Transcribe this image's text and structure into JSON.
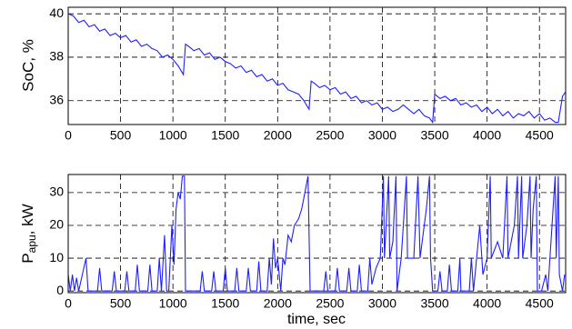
{
  "chart_data": [
    {
      "type": "line",
      "y_label": "SoC, %",
      "color": "#1f1fff",
      "grid": true,
      "xlim": [
        0,
        4750
      ],
      "xticks": [
        0,
        500,
        1000,
        1500,
        2000,
        2500,
        3000,
        3500,
        4000,
        4500
      ],
      "ylim": [
        34.9,
        40.3
      ],
      "yticks": [
        36,
        38,
        40
      ],
      "x": [
        0,
        50,
        100,
        150,
        200,
        250,
        300,
        350,
        400,
        450,
        500,
        550,
        600,
        650,
        700,
        750,
        800,
        850,
        900,
        950,
        1000,
        1050,
        1100,
        1120,
        1150,
        1200,
        1250,
        1300,
        1350,
        1400,
        1450,
        1500,
        1550,
        1600,
        1650,
        1700,
        1750,
        1800,
        1850,
        1900,
        1950,
        2000,
        2050,
        2100,
        2150,
        2200,
        2250,
        2300,
        2320,
        2350,
        2400,
        2450,
        2500,
        2550,
        2600,
        2650,
        2700,
        2750,
        2800,
        2850,
        2900,
        2950,
        3000,
        3050,
        3100,
        3150,
        3200,
        3250,
        3300,
        3350,
        3400,
        3450,
        3480,
        3500,
        3550,
        3600,
        3650,
        3700,
        3750,
        3800,
        3850,
        3900,
        3950,
        4000,
        4050,
        4100,
        4150,
        4200,
        4250,
        4300,
        4350,
        4400,
        4450,
        4500,
        4550,
        4600,
        4650,
        4680,
        4720,
        4750
      ],
      "values": [
        40,
        39.9,
        39.6,
        39.7,
        39.4,
        39.5,
        39.2,
        39.3,
        39.0,
        39.1,
        38.9,
        39.0,
        38.7,
        38.8,
        38.5,
        38.6,
        38.4,
        38.3,
        38.0,
        38.1,
        37.9,
        37.6,
        37.2,
        38.6,
        38.5,
        38.3,
        38.4,
        38.1,
        38.2,
        37.9,
        38.0,
        37.8,
        37.7,
        37.5,
        37.6,
        37.3,
        37.4,
        37.1,
        37.2,
        36.9,
        37.0,
        36.7,
        36.8,
        36.5,
        36.4,
        36.3,
        36.0,
        35.6,
        36.9,
        36.8,
        36.6,
        36.7,
        36.5,
        36.6,
        36.3,
        36.4,
        36.1,
        36.2,
        35.9,
        36.0,
        35.8,
        35.9,
        35.6,
        35.7,
        35.5,
        35.6,
        35.8,
        35.6,
        35.4,
        35.6,
        35.3,
        35.2,
        35.0,
        36.3,
        36.1,
        36.2,
        36.0,
        36.1,
        35.8,
        35.9,
        35.7,
        35.8,
        35.5,
        35.7,
        35.4,
        35.6,
        35.3,
        35.5,
        35.2,
        35.4,
        35.3,
        35.5,
        35.2,
        35.4,
        35.1,
        35.2,
        35.0,
        35.0,
        36.2,
        36.4
      ]
    },
    {
      "type": "line",
      "y_label": "P",
      "y_label_sub": "apu",
      "y_label_unit": ", kW",
      "x_label": "time, sec",
      "color": "#1f1fff",
      "grid": true,
      "xlim": [
        0,
        4750
      ],
      "xticks": [
        0,
        500,
        1000,
        1500,
        2000,
        2500,
        3000,
        3500,
        4000,
        4500
      ],
      "ylim": [
        -0.5,
        35.5
      ],
      "yticks": [
        0,
        10,
        20,
        30
      ],
      "x": [
        0,
        20,
        40,
        60,
        80,
        100,
        170,
        190,
        280,
        300,
        320,
        420,
        440,
        460,
        540,
        560,
        580,
        640,
        660,
        680,
        760,
        780,
        800,
        850,
        870,
        890,
        920,
        940,
        960,
        990,
        1010,
        1030,
        1050,
        1070,
        1090,
        1110,
        1120,
        1260,
        1280,
        1300,
        1370,
        1390,
        1410,
        1480,
        1500,
        1520,
        1590,
        1610,
        1630,
        1700,
        1720,
        1740,
        1800,
        1820,
        1840,
        1900,
        1920,
        1940,
        1960,
        1980,
        2000,
        2030,
        2050,
        2070,
        2100,
        2130,
        2160,
        2200,
        2230,
        2260,
        2290,
        2310,
        2440,
        2460,
        2480,
        2550,
        2570,
        2590,
        2660,
        2680,
        2700,
        2760,
        2780,
        2800,
        2860,
        2880,
        2900,
        2940,
        2980,
        3010,
        3020,
        3060,
        3070,
        3100,
        3130,
        3140,
        3180,
        3200,
        3230,
        3240,
        3300,
        3340,
        3360,
        3420,
        3450,
        3460,
        3480,
        3530,
        3550,
        3570,
        3620,
        3640,
        3660,
        3720,
        3740,
        3750,
        3830,
        3850,
        3870,
        3900,
        3930,
        3960,
        4000,
        4030,
        4040,
        4100,
        4150,
        4190,
        4200,
        4260,
        4290,
        4300,
        4330,
        4340,
        4380,
        4410,
        4420,
        4440,
        4470,
        4480,
        4520,
        4560,
        4580,
        4600,
        4620,
        4650,
        4660,
        4680,
        4690,
        4720,
        4740
      ],
      "values": [
        5,
        0,
        5,
        0,
        4,
        0,
        10,
        0,
        0,
        7,
        0,
        0,
        6,
        0,
        0,
        6,
        0,
        0,
        8,
        0,
        0,
        8,
        0,
        0,
        10,
        0,
        17,
        0,
        0,
        20,
        8,
        25,
        30,
        28,
        35,
        35,
        0,
        0,
        6,
        0,
        0,
        6,
        0,
        0,
        7,
        0,
        0,
        7,
        0,
        0,
        7,
        0,
        0,
        9,
        0,
        0,
        10,
        2,
        16,
        7,
        10,
        0,
        10,
        8,
        17,
        15,
        20,
        22,
        25,
        30,
        35,
        0,
        0,
        6,
        0,
        0,
        7,
        0,
        0,
        7,
        0,
        0,
        8,
        0,
        0,
        10,
        2,
        7,
        10,
        35,
        10,
        35,
        10,
        15,
        35,
        0,
        10,
        20,
        35,
        10,
        10,
        35,
        10,
        25,
        35,
        10,
        0,
        0,
        6,
        0,
        0,
        8,
        0,
        0,
        10,
        0,
        0,
        10,
        0,
        10,
        20,
        5,
        10,
        35,
        10,
        15,
        10,
        35,
        10,
        20,
        35,
        10,
        35,
        10,
        20,
        35,
        10,
        25,
        35,
        0,
        0,
        5,
        0,
        10,
        20,
        35,
        10,
        35,
        5,
        0,
        5
      ]
    }
  ]
}
